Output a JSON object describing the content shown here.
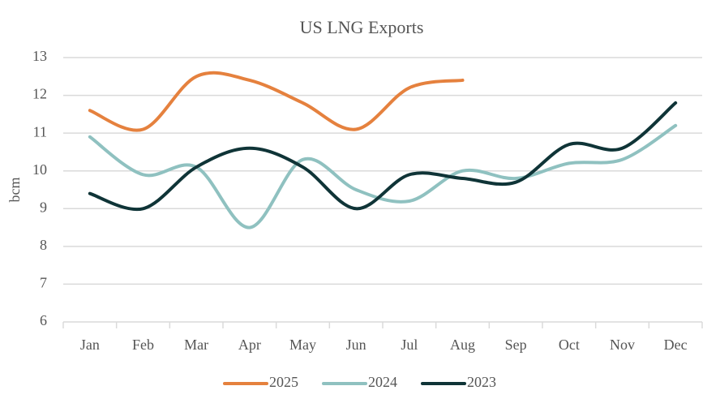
{
  "chart_data": {
    "type": "line",
    "title": "US LNG Exports",
    "y_label": "bcm",
    "categories": [
      "Jan",
      "Feb",
      "Mar",
      "Apr",
      "May",
      "Jun",
      "Jul",
      "Aug",
      "Sep",
      "Oct",
      "Nov",
      "Dec"
    ],
    "series": [
      {
        "name": "2025",
        "color": "#e5813e",
        "values": [
          11.6,
          11.1,
          12.5,
          12.4,
          11.8,
          11.1,
          12.2,
          12.4,
          null,
          null,
          null,
          null
        ]
      },
      {
        "name": "2024",
        "color": "#8fc1c0",
        "values": [
          10.9,
          9.9,
          10.1,
          8.5,
          10.3,
          9.5,
          9.2,
          10.0,
          9.8,
          10.2,
          10.3,
          11.2
        ]
      },
      {
        "name": "2023",
        "color": "#0f3437",
        "values": [
          9.4,
          9.0,
          10.1,
          10.6,
          10.1,
          9.0,
          9.9,
          9.8,
          9.7,
          10.7,
          10.6,
          11.8
        ]
      }
    ],
    "ylim": [
      6,
      13
    ],
    "yticks": [
      6,
      7,
      8,
      9,
      10,
      11,
      12,
      13
    ],
    "grid": true,
    "legend": "bottom"
  }
}
